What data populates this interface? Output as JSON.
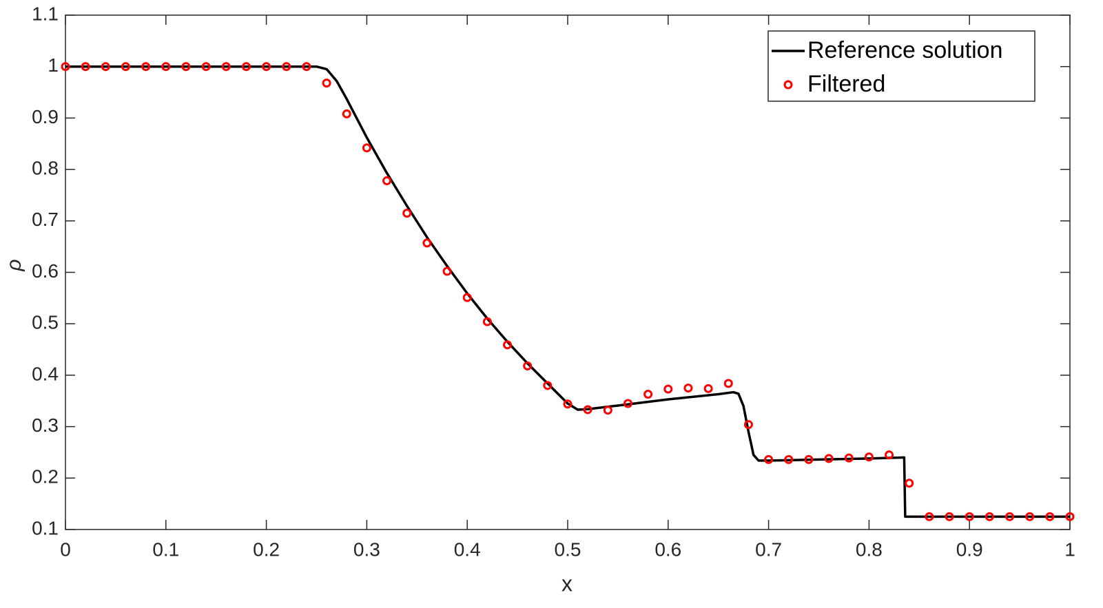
{
  "chart_data": {
    "type": "line",
    "x_label": "x",
    "y_label": "ρ",
    "xlim": [
      0,
      1
    ],
    "xticks": [
      0,
      0.1,
      0.2,
      0.3,
      0.4,
      0.5,
      0.6,
      0.7,
      0.8,
      0.9,
      1
    ],
    "ylim": [
      0.1,
      1.1
    ],
    "yticks": [
      0.1,
      0.2,
      0.3,
      0.4,
      0.5,
      0.6,
      0.7,
      0.8,
      0.9,
      1,
      1.1
    ],
    "grid": false,
    "legend": "top-right",
    "series": [
      {
        "name": "Reference solution",
        "color": "#000000",
        "mode": "line",
        "x": [
          0,
          0.25,
          0.26,
          0.27,
          0.28,
          0.3,
          0.32,
          0.34,
          0.36,
          0.38,
          0.4,
          0.42,
          0.44,
          0.46,
          0.48,
          0.5,
          0.51,
          0.52,
          0.55,
          0.6,
          0.65,
          0.665,
          0.67,
          0.675,
          0.68,
          0.685,
          0.69,
          0.7,
          0.75,
          0.8,
          0.835,
          0.836,
          1
        ],
        "values": [
          1,
          1,
          0.995,
          0.972,
          0.937,
          0.862,
          0.793,
          0.729,
          0.668,
          0.612,
          0.559,
          0.51,
          0.465,
          0.423,
          0.384,
          0.345,
          0.333,
          0.334,
          0.341,
          0.353,
          0.363,
          0.367,
          0.364,
          0.34,
          0.29,
          0.245,
          0.234,
          0.234,
          0.236,
          0.238,
          0.24,
          0.125,
          0.125
        ]
      },
      {
        "name": "Filtered",
        "color": "#ff0000",
        "mode": "markers",
        "x": [
          0,
          0.02,
          0.04,
          0.06,
          0.08,
          0.1,
          0.12,
          0.14,
          0.16,
          0.18,
          0.2,
          0.22,
          0.24,
          0.26,
          0.28,
          0.3,
          0.32,
          0.34,
          0.36,
          0.38,
          0.4,
          0.42,
          0.44,
          0.46,
          0.48,
          0.5,
          0.52,
          0.54,
          0.56,
          0.58,
          0.6,
          0.62,
          0.64,
          0.66,
          0.68,
          0.7,
          0.72,
          0.74,
          0.76,
          0.78,
          0.8,
          0.82,
          0.84,
          0.86,
          0.88,
          0.9,
          0.92,
          0.94,
          0.96,
          0.98,
          1
        ],
        "values": [
          1,
          1,
          1,
          1,
          1,
          1,
          1,
          1,
          1,
          1,
          1,
          1,
          1,
          0.968,
          0.908,
          0.842,
          0.778,
          0.715,
          0.657,
          0.602,
          0.551,
          0.504,
          0.459,
          0.418,
          0.38,
          0.344,
          0.333,
          0.332,
          0.345,
          0.363,
          0.373,
          0.375,
          0.374,
          0.384,
          0.304,
          0.236,
          0.236,
          0.236,
          0.238,
          0.239,
          0.241,
          0.245,
          0.19,
          0.125,
          0.125,
          0.125,
          0.125,
          0.125,
          0.125,
          0.125,
          0.125
        ]
      }
    ]
  }
}
